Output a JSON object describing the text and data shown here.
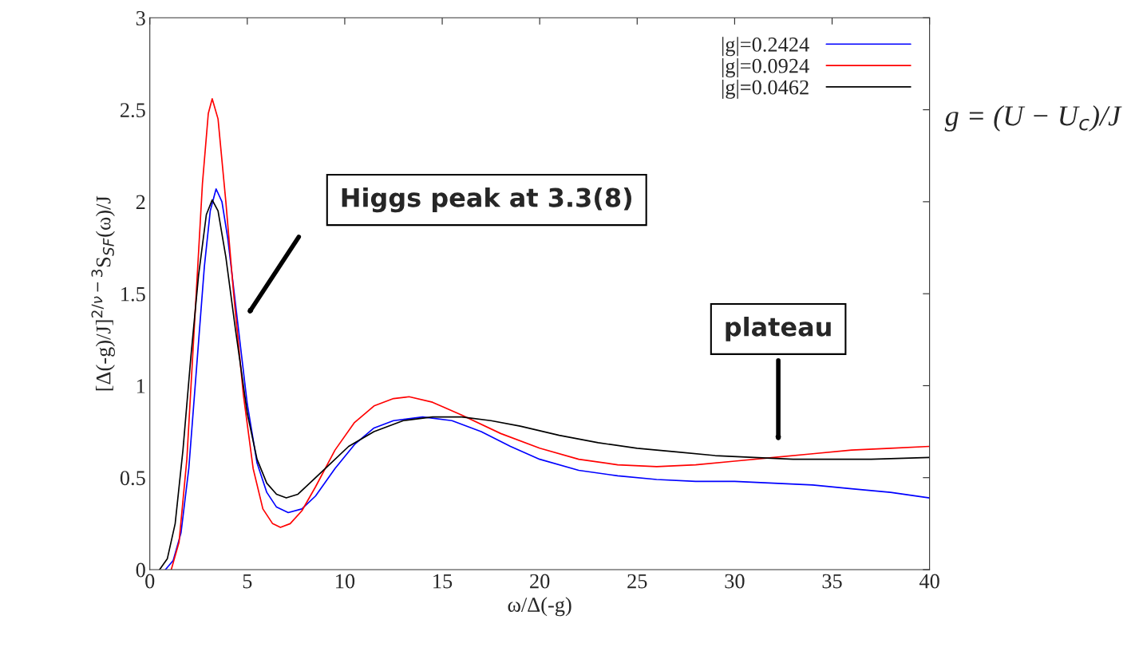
{
  "chart_data": {
    "type": "line",
    "xlabel": "ω/Δ(-g)",
    "ylabel": "[Δ(-g)/J]$^{2/ν−3}$S$_{SF}$(ω)/J",
    "xlim": [
      0,
      40
    ],
    "ylim": [
      0,
      3
    ],
    "xticks": [
      0,
      5,
      10,
      15,
      20,
      25,
      30,
      35,
      40
    ],
    "yticks": [
      0,
      0.5,
      1,
      1.5,
      2,
      2.5,
      3
    ],
    "grid": false,
    "legend": "top right",
    "marker": "none",
    "line_style": "solid",
    "series": [
      {
        "name": "|g|=0.2424",
        "color": "#0000ff",
        "x": [
          0.8,
          1.2,
          1.6,
          2.0,
          2.4,
          2.8,
          3.1,
          3.4,
          3.7,
          4.0,
          4.5,
          5.0,
          5.5,
          6.0,
          6.5,
          7.1,
          7.8,
          8.5,
          9.5,
          10.5,
          11.5,
          12.5,
          14,
          15.5,
          17,
          18.5,
          20,
          22,
          24,
          26,
          28,
          30,
          32,
          34,
          36,
          38,
          40
        ],
        "values": [
          0,
          0.05,
          0.2,
          0.55,
          1.1,
          1.65,
          1.95,
          2.07,
          2.0,
          1.8,
          1.35,
          0.9,
          0.58,
          0.42,
          0.34,
          0.31,
          0.33,
          0.4,
          0.55,
          0.68,
          0.77,
          0.81,
          0.83,
          0.81,
          0.75,
          0.67,
          0.6,
          0.54,
          0.51,
          0.49,
          0.48,
          0.48,
          0.47,
          0.46,
          0.44,
          0.42,
          0.39
        ]
      },
      {
        "name": "|g|=0.0924",
        "color": "#ff0000",
        "x": [
          1.1,
          1.5,
          1.9,
          2.3,
          2.7,
          3.0,
          3.2,
          3.5,
          3.9,
          4.3,
          4.8,
          5.3,
          5.8,
          6.3,
          6.7,
          7.2,
          7.8,
          8.5,
          9.5,
          10.5,
          11.5,
          12.5,
          13.3,
          14.5,
          16,
          18,
          20,
          22,
          24,
          26,
          28,
          30,
          32,
          34,
          36,
          38,
          40
        ],
        "values": [
          0,
          0.15,
          0.6,
          1.35,
          2.1,
          2.48,
          2.56,
          2.45,
          2.0,
          1.5,
          0.95,
          0.55,
          0.33,
          0.25,
          0.23,
          0.25,
          0.32,
          0.45,
          0.65,
          0.8,
          0.89,
          0.93,
          0.94,
          0.91,
          0.84,
          0.74,
          0.66,
          0.6,
          0.57,
          0.56,
          0.57,
          0.59,
          0.61,
          0.63,
          0.65,
          0.66,
          0.67
        ]
      },
      {
        "name": "|g|=0.0462",
        "color": "#000000",
        "x": [
          0.5,
          0.9,
          1.3,
          1.7,
          2.1,
          2.5,
          2.9,
          3.2,
          3.5,
          3.9,
          4.4,
          5.0,
          5.5,
          6.0,
          6.5,
          7.0,
          7.6,
          8.3,
          9.2,
          10.2,
          11.5,
          13,
          14.5,
          16,
          17.5,
          19,
          21,
          23,
          25,
          27,
          29,
          31,
          33,
          35,
          37,
          40
        ],
        "values": [
          0,
          0.06,
          0.25,
          0.65,
          1.15,
          1.6,
          1.93,
          2.01,
          1.95,
          1.7,
          1.3,
          0.85,
          0.6,
          0.47,
          0.41,
          0.39,
          0.41,
          0.48,
          0.57,
          0.67,
          0.75,
          0.81,
          0.83,
          0.83,
          0.81,
          0.78,
          0.73,
          0.69,
          0.66,
          0.64,
          0.62,
          0.61,
          0.6,
          0.6,
          0.6,
          0.61
        ]
      }
    ],
    "annotations": [
      "Higgs peak at 3.3(8)",
      "plateau",
      "g = (U − U$_{c}$)/J"
    ]
  }
}
